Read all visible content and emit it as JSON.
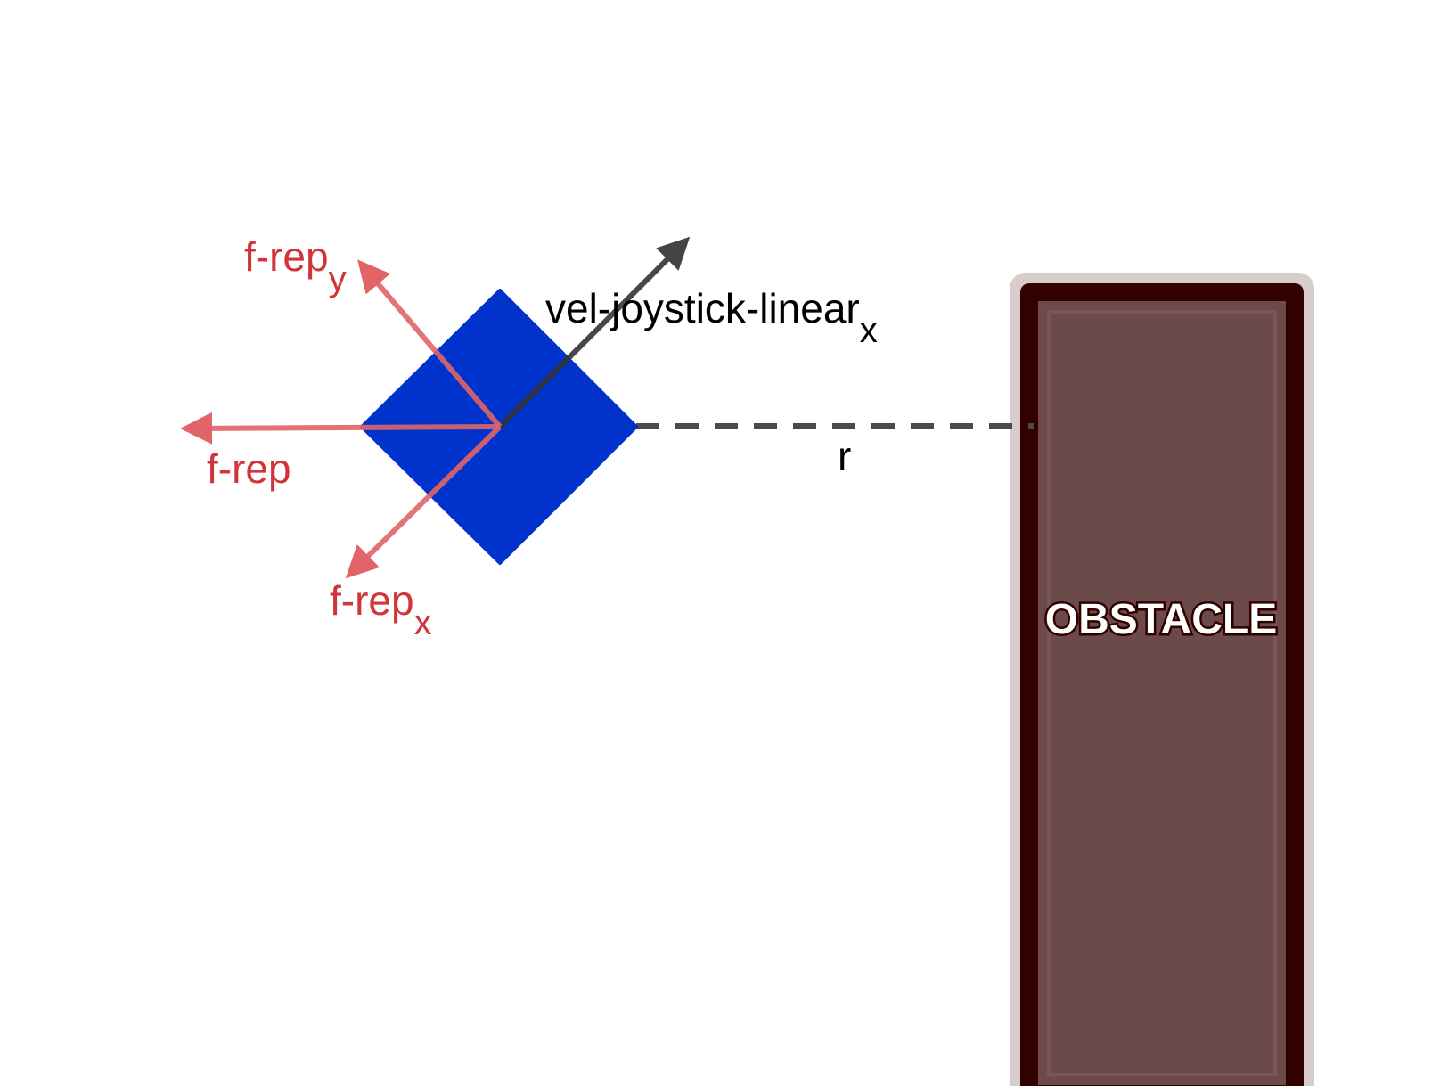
{
  "labels": {
    "frep_y": {
      "base": "f-rep",
      "sub": "y"
    },
    "frep": "f-rep",
    "frep_x": {
      "base": "f-rep",
      "sub": "x"
    },
    "velocity": {
      "base": "vel-joystick-linear",
      "sub": "x"
    },
    "distance": "r",
    "obstacle": "OBSTACLE"
  },
  "colors": {
    "robot": "#0033cc",
    "force": "#e06468",
    "force_label": "#d1343b",
    "velocity": "#333333",
    "distance_line": "#4a4a4a",
    "obstacle_fill": "#6d4a4a",
    "obstacle_inner": "#6d4a4a",
    "obstacle_border": "#330000",
    "obstacle_halo": "#d8cccc"
  }
}
